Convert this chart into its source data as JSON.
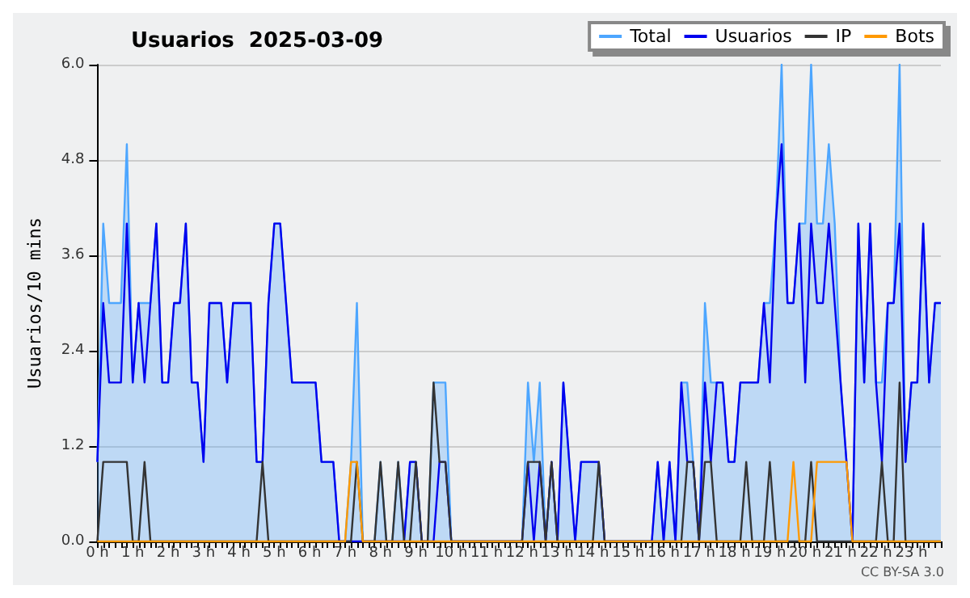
{
  "chart_data": {
    "type": "line",
    "title": "Usuarios  2025-03-09",
    "ylabel": "Usuarios/10 mins",
    "annotations": [
      "CC BY-SA 3.0"
    ],
    "categories": [
      "0 h",
      null,
      null,
      null,
      null,
      null,
      "1 h",
      null,
      null,
      null,
      null,
      null,
      "2 h",
      null,
      null,
      null,
      null,
      null,
      "3 h",
      null,
      null,
      null,
      null,
      null,
      "4 h",
      null,
      null,
      null,
      null,
      null,
      "5 h",
      null,
      null,
      null,
      null,
      null,
      "6 h",
      null,
      null,
      null,
      null,
      null,
      "7 h",
      null,
      null,
      null,
      null,
      null,
      "8 h",
      null,
      null,
      null,
      null,
      null,
      "9 h",
      null,
      null,
      null,
      null,
      null,
      "10 h",
      null,
      null,
      null,
      null,
      null,
      "11 h",
      null,
      null,
      null,
      null,
      null,
      "12 h",
      null,
      null,
      null,
      null,
      null,
      "13 h",
      null,
      null,
      null,
      null,
      null,
      "14 h",
      null,
      null,
      null,
      null,
      null,
      "15 h",
      null,
      null,
      null,
      null,
      null,
      "16 h",
      null,
      null,
      null,
      null,
      null,
      "17 h",
      null,
      null,
      null,
      null,
      null,
      "18 h",
      null,
      null,
      null,
      null,
      null,
      "19 h",
      null,
      null,
      null,
      null,
      null,
      "20 h",
      null,
      null,
      null,
      null,
      null,
      "21 h",
      null,
      null,
      null,
      null,
      null,
      "22 h",
      null,
      null,
      null,
      null,
      null,
      "23 h",
      null,
      null,
      null,
      null,
      null
    ],
    "ylim": [
      0,
      6
    ],
    "yticks": [
      {
        "value": 0,
        "label": "0.0"
      },
      1.2,
      2.4,
      3.6,
      4.8,
      {
        "value": 6,
        "label": "6.0"
      }
    ],
    "grid": "y",
    "legend": "top right",
    "marker": "none",
    "series": [
      {
        "name": "Total",
        "type": "area",
        "color": "#4da6ff",
        "values": [
          1,
          4,
          3,
          3,
          3,
          5,
          2,
          3,
          3,
          3,
          4,
          2,
          2,
          3,
          3,
          4,
          2,
          2,
          1,
          3,
          3,
          3,
          2,
          3,
          3,
          3,
          3,
          1,
          1,
          3,
          4,
          4,
          3,
          2,
          2,
          2,
          2,
          2,
          1,
          1,
          1,
          0,
          0,
          1,
          3,
          0,
          0,
          0,
          1,
          0,
          0,
          1,
          0,
          1,
          1,
          0,
          0,
          2,
          2,
          2,
          0,
          0,
          0,
          0,
          0,
          0,
          0,
          0,
          0,
          0,
          0,
          0,
          0,
          2,
          1,
          2,
          0,
          1,
          0,
          2,
          1,
          0,
          1,
          1,
          1,
          1,
          0,
          0,
          0,
          0,
          0,
          0,
          0,
          0,
          0,
          1,
          0,
          1,
          0,
          2,
          2,
          1,
          0,
          3,
          2,
          2,
          2,
          1,
          1,
          2,
          2,
          2,
          2,
          3,
          3,
          4,
          6,
          3,
          3,
          4,
          4,
          6,
          4,
          4,
          5,
          4,
          2,
          1,
          0,
          4,
          2,
          4,
          2,
          2,
          3,
          3,
          6,
          1,
          2,
          2,
          4,
          2,
          3,
          3
        ]
      },
      {
        "name": "Usuarios",
        "color": "#0000ee",
        "values": [
          1,
          3,
          2,
          2,
          2,
          4,
          2,
          3,
          2,
          3,
          4,
          2,
          2,
          3,
          3,
          4,
          2,
          2,
          1,
          3,
          3,
          3,
          2,
          3,
          3,
          3,
          3,
          1,
          1,
          3,
          4,
          4,
          3,
          2,
          2,
          2,
          2,
          2,
          1,
          1,
          1,
          0,
          0,
          0,
          0,
          0,
          0,
          0,
          0,
          0,
          0,
          0,
          0,
          1,
          1,
          0,
          0,
          0,
          1,
          1,
          0,
          0,
          0,
          0,
          0,
          0,
          0,
          0,
          0,
          0,
          0,
          0,
          0,
          1,
          0,
          1,
          0,
          1,
          0,
          2,
          1,
          0,
          1,
          1,
          1,
          1,
          0,
          0,
          0,
          0,
          0,
          0,
          0,
          0,
          0,
          1,
          0,
          1,
          0,
          2,
          1,
          1,
          0,
          2,
          1,
          2,
          2,
          1,
          1,
          2,
          2,
          2,
          2,
          3,
          2,
          4,
          5,
          3,
          3,
          4,
          2,
          4,
          3,
          3,
          4,
          3,
          2,
          1,
          0,
          4,
          2,
          4,
          2,
          1,
          3,
          3,
          4,
          1,
          2,
          2,
          4,
          2,
          3,
          3
        ]
      },
      {
        "name": "IP",
        "color": "#333333",
        "values": [
          0,
          1,
          1,
          1,
          1,
          1,
          0,
          0,
          1,
          0,
          0,
          0,
          0,
          0,
          0,
          0,
          0,
          0,
          0,
          0,
          0,
          0,
          0,
          0,
          0,
          0,
          0,
          0,
          1,
          0,
          0,
          0,
          0,
          0,
          0,
          0,
          0,
          0,
          0,
          0,
          0,
          0,
          0,
          0,
          1,
          0,
          0,
          0,
          1,
          0,
          0,
          1,
          0,
          0,
          1,
          0,
          0,
          2,
          1,
          1,
          0,
          0,
          0,
          0,
          0,
          0,
          0,
          0,
          0,
          0,
          0,
          0,
          0,
          1,
          1,
          1,
          0,
          1,
          0,
          0,
          0,
          0,
          0,
          0,
          0,
          1,
          0,
          0,
          0,
          0,
          0,
          0,
          0,
          0,
          0,
          0,
          0,
          0,
          0,
          0,
          1,
          1,
          0,
          1,
          1,
          0,
          0,
          0,
          0,
          0,
          1,
          0,
          0,
          0,
          1,
          0,
          0,
          0,
          0,
          0,
          0,
          1,
          0,
          0,
          0,
          0,
          0,
          0,
          0,
          0,
          0,
          0,
          0,
          1,
          0,
          0,
          2,
          0,
          0,
          0,
          0,
          0,
          0,
          0
        ]
      },
      {
        "name": "Bots",
        "color": "#ff9900",
        "values": [
          0,
          0,
          0,
          0,
          0,
          0,
          0,
          0,
          0,
          0,
          0,
          0,
          0,
          0,
          0,
          0,
          0,
          0,
          0,
          0,
          0,
          0,
          0,
          0,
          0,
          0,
          0,
          0,
          0,
          0,
          0,
          0,
          0,
          0,
          0,
          0,
          0,
          0,
          0,
          0,
          0,
          0,
          0,
          1,
          1,
          0,
          0,
          0,
          0,
          0,
          0,
          0,
          0,
          0,
          0,
          0,
          0,
          0,
          0,
          0,
          0,
          0,
          0,
          0,
          0,
          0,
          0,
          0,
          0,
          0,
          0,
          0,
          0,
          0,
          0,
          0,
          0,
          0,
          0,
          0,
          0,
          0,
          0,
          0,
          0,
          0,
          0,
          0,
          0,
          0,
          0,
          0,
          0,
          0,
          0,
          0,
          0,
          0,
          0,
          0,
          0,
          0,
          0,
          0,
          0,
          0,
          0,
          0,
          0,
          0,
          0,
          0,
          0,
          0,
          0,
          0,
          0,
          0,
          1,
          0,
          0,
          0,
          1,
          1,
          1,
          1,
          1,
          1,
          0,
          0,
          0,
          0,
          0,
          0,
          0,
          0,
          0,
          0,
          0,
          0,
          0,
          0,
          0,
          0
        ]
      }
    ]
  }
}
